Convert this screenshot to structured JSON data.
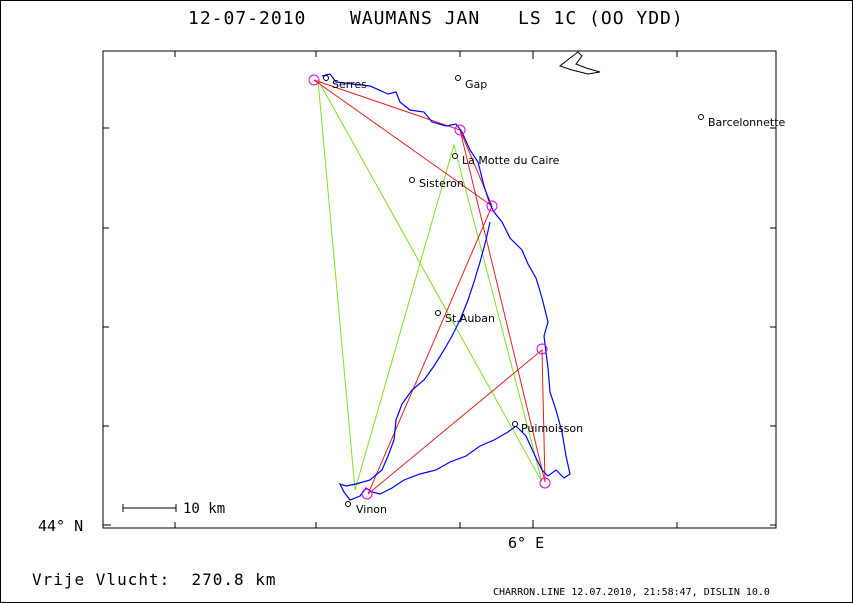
{
  "header": {
    "date": "12-07-2010",
    "pilot": "WAUMANS JAN",
    "glider": "LS 1C (OO YDD)"
  },
  "axes": {
    "lat_label": "44° N",
    "lon_label": "6° E"
  },
  "scale_bar": {
    "label": "10 km"
  },
  "places": [
    {
      "name": "Serres"
    },
    {
      "name": "Gap"
    },
    {
      "name": "Barcelonnette"
    },
    {
      "name": "La Motte du Caire"
    },
    {
      "name": "Sisteron"
    },
    {
      "name": "St.Auban"
    },
    {
      "name": "Puimoisson"
    },
    {
      "name": "Vinon"
    }
  ],
  "footer": {
    "distance": "Vrije Vlucht:  270.8 km",
    "credit": "CHARRON.LINE 12.07.2010, 21:58:47, DISLIN 10.0"
  },
  "colors": {
    "track": "#0000ff",
    "task": "#e02020",
    "triangle": "#80e020",
    "turnpoint": "#e000e0"
  }
}
